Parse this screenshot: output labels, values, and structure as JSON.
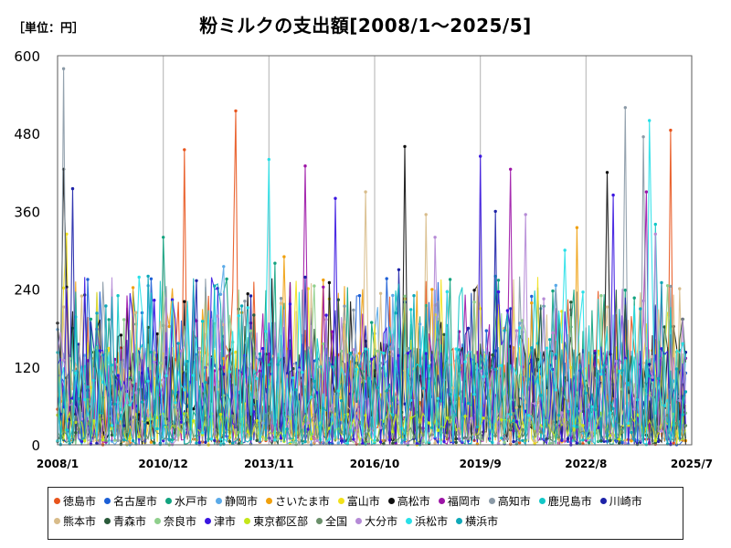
{
  "unit_label": "［単位：円］",
  "title": "粉ミルクの支出額[2008/1～2025/5]",
  "chart_data": {
    "type": "line",
    "title": "粉ミルクの支出額[2008/1～2025/5]",
    "unit": "［単位：円］",
    "ylim": [
      0,
      600
    ],
    "yticks": [
      0,
      120,
      240,
      360,
      480,
      600
    ],
    "xlim": [
      "2008/1",
      "2025/7"
    ],
    "xticks": [
      "2008/1",
      "2010/12",
      "2013/11",
      "2016/10",
      "2019/9",
      "2022/8",
      "2025/7"
    ],
    "grid": "vertical",
    "legend_position": "bottom",
    "x_start": "2008/1",
    "x_end": "2025/5",
    "series": [
      {
        "name": "徳島市",
        "color": "#e8541c",
        "peaks": [
          [
            42,
            455
          ],
          [
            59,
            515
          ],
          [
            203,
            485
          ]
        ]
      },
      {
        "name": "名古屋市",
        "color": "#1c5fd6",
        "peaks": [
          [
            10,
            255
          ],
          [
            100,
            230
          ],
          [
            150,
            210
          ]
        ]
      },
      {
        "name": "水戸市",
        "color": "#12a37f",
        "peaks": [
          [
            35,
            320
          ],
          [
            72,
            280
          ],
          [
            130,
            255
          ]
        ]
      },
      {
        "name": "静岡市",
        "color": "#5aaae8",
        "peaks": [
          [
            55,
            275
          ],
          [
            95,
            160
          ],
          [
            160,
            210
          ]
        ]
      },
      {
        "name": "さいたま市",
        "color": "#f0a00d",
        "peaks": [
          [
            75,
            290
          ],
          [
            115,
            225
          ],
          [
            172,
            335
          ]
        ]
      },
      {
        "name": "富山市",
        "color": "#f2e11a",
        "peaks": [
          [
            3,
            325
          ],
          [
            90,
            225
          ],
          [
            140,
            210
          ]
        ]
      },
      {
        "name": "高松市",
        "color": "#101010",
        "peaks": [
          [
            2,
            425
          ],
          [
            115,
            460
          ],
          [
            182,
            420
          ]
        ]
      },
      {
        "name": "福岡市",
        "color": "#9c14a6",
        "peaks": [
          [
            82,
            430
          ],
          [
            150,
            425
          ],
          [
            195,
            390
          ]
        ]
      },
      {
        "name": "高知市",
        "color": "#8a99a6",
        "peaks": [
          [
            2,
            580
          ],
          [
            188,
            520
          ],
          [
            194,
            475
          ]
        ]
      },
      {
        "name": "鹿児島市",
        "color": "#12c7c7",
        "peaks": [
          [
            20,
            230
          ],
          [
            145,
            260
          ],
          [
            198,
            340
          ]
        ]
      },
      {
        "name": "川崎市",
        "color": "#1d22a8",
        "peaks": [
          [
            5,
            395
          ],
          [
            113,
            270
          ],
          [
            145,
            360
          ]
        ]
      },
      {
        "name": "熊本市",
        "color": "#d8bc8a",
        "peaks": [
          [
            102,
            390
          ],
          [
            122,
            355
          ],
          [
            55,
            185
          ]
        ]
      },
      {
        "name": "青森市",
        "color": "#2a5a3a",
        "peaks": [
          [
            65,
            200
          ],
          [
            128,
            170
          ],
          [
            170,
            220
          ]
        ]
      },
      {
        "name": "奈良市",
        "color": "#8fcf8c",
        "peaks": [
          [
            85,
            245
          ],
          [
            138,
            220
          ],
          [
            180,
            230
          ]
        ]
      },
      {
        "name": "津市",
        "color": "#3a16e0",
        "peaks": [
          [
            92,
            380
          ],
          [
            140,
            445
          ],
          [
            184,
            385
          ]
        ]
      },
      {
        "name": "東京都区部",
        "color": "#c5e61a",
        "peaks": [
          [
            10,
            70
          ],
          [
            110,
            60
          ],
          [
            170,
            55
          ]
        ]
      },
      {
        "name": "全国",
        "color": "#6a8f6a",
        "peaks": [
          [
            20,
            30
          ],
          [
            100,
            35
          ],
          [
            180,
            40
          ]
        ]
      },
      {
        "name": "大分市",
        "color": "#b58ad6",
        "peaks": [
          [
            125,
            320
          ],
          [
            155,
            355
          ],
          [
            198,
            325
          ]
        ]
      },
      {
        "name": "浜松市",
        "color": "#28e0e8",
        "peaks": [
          [
            70,
            440
          ],
          [
            168,
            300
          ],
          [
            196,
            500
          ]
        ]
      },
      {
        "name": "横浜市",
        "color": "#0fa8b8",
        "peaks": [
          [
            30,
            260
          ],
          [
            118,
            230
          ],
          [
            200,
            250
          ]
        ]
      }
    ]
  }
}
